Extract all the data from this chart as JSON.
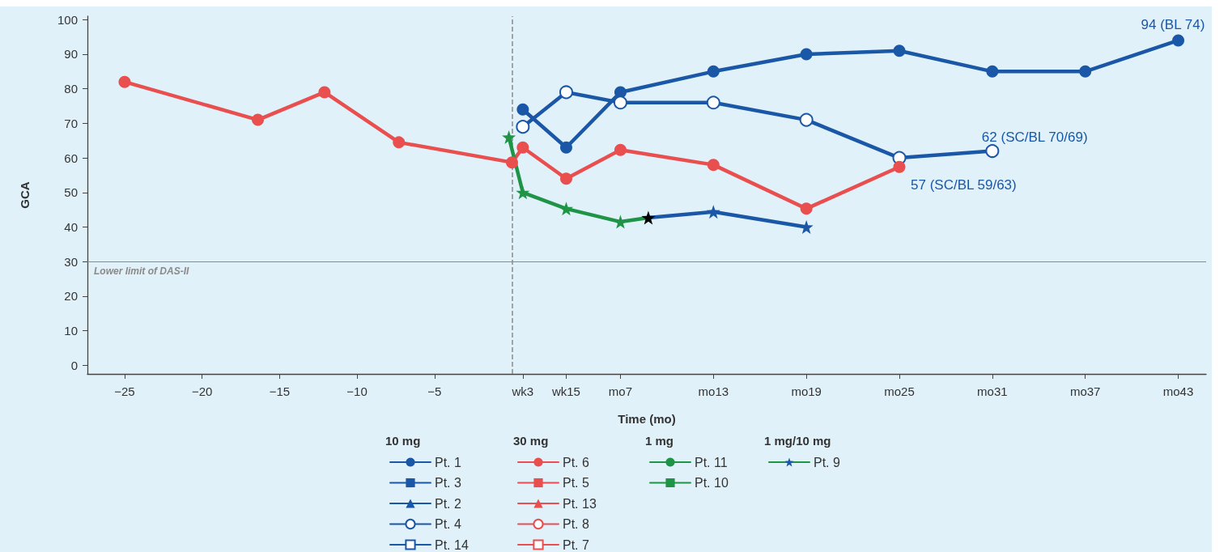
{
  "chart_data": {
    "type": "line",
    "xlabel": "Time (mo)",
    "ylabel": "GCA",
    "xlim": [
      -27.4,
      44.8
    ],
    "ylim": [
      -2.5,
      101
    ],
    "xticks": [
      -25,
      -20,
      -15,
      -10,
      -5,
      {
        "value": 0.7,
        "label": "wk3"
      },
      {
        "value": 3.5,
        "label": "wk15"
      },
      {
        "value": 7,
        "label": "mo7"
      },
      {
        "value": 13,
        "label": "mo13"
      },
      {
        "value": 19,
        "label": "mo19"
      },
      {
        "value": 25,
        "label": "mo25"
      },
      {
        "value": 31,
        "label": "mo31"
      },
      {
        "value": 37,
        "label": "mo37"
      },
      {
        "value": 43,
        "label": "mo43"
      }
    ],
    "yticks": [
      0,
      10,
      20,
      30,
      40,
      50,
      60,
      70,
      80,
      90,
      100
    ],
    "grid": false,
    "legend": "bottom",
    "legend_title": [
      "10 mg",
      "30 mg",
      "1 mg",
      "1 mg/10 mg"
    ],
    "series": [
      {
        "name": "Pt. 1",
        "color": "#1a57a6",
        "marker": "circle",
        "x": [
          0.7,
          3.5,
          7,
          13,
          19,
          25,
          31,
          37,
          43
        ],
        "values": [
          74,
          63,
          79,
          85,
          90,
          91,
          85,
          85,
          94
        ]
      },
      {
        "name": "Pt. 3",
        "color": "#1a57a6",
        "marker": "square"
      },
      {
        "name": "Pt. 2",
        "color": "#1a57a6",
        "marker": "triangle"
      },
      {
        "name": "Pt. 4",
        "color": "#1a57a6",
        "marker": "circle-open",
        "x": [
          0.7,
          3.5,
          7,
          13,
          19,
          25,
          31
        ],
        "values": [
          69,
          79,
          76,
          76,
          71,
          60,
          62
        ]
      },
      {
        "name": "Pt. 14",
        "color": "#1a57a6",
        "marker": "square-open"
      },
      {
        "name": "Pt. 6",
        "color": "#e84f4e",
        "marker": "circle",
        "x": [
          -25,
          -16.4,
          -12.1,
          -7.3,
          0,
          0.7,
          3.5,
          7,
          13,
          19,
          25
        ],
        "values": [
          82,
          71,
          79,
          64.5,
          58.7,
          63,
          54,
          62.3,
          58,
          45.3,
          57.4
        ]
      },
      {
        "name": "Pt. 5",
        "color": "#e84f4e",
        "marker": "square"
      },
      {
        "name": "Pt. 13",
        "color": "#e84f4e",
        "marker": "triangle"
      },
      {
        "name": "Pt. 8",
        "color": "#e84f4e",
        "marker": "circle-open"
      },
      {
        "name": "Pt. 7",
        "color": "#e84f4e",
        "marker": "square-open"
      },
      {
        "name": "Pt. 11",
        "color": "#1f9446",
        "marker": "circle"
      },
      {
        "name": "Pt. 10",
        "color": "#1f9446",
        "marker": "square"
      },
      {
        "name": "Pt. 9",
        "color": "#1f9446",
        "marker": "star",
        "x": [
          -0.2,
          0.7,
          3.5,
          7,
          8.8,
          13,
          19
        ],
        "values": [
          66,
          50,
          45.3,
          41.5,
          42.7,
          44.4,
          40
        ],
        "colors": [
          "#1f9446",
          "#1f9446",
          "#1f9446",
          "#1f9446",
          "#000000",
          "#1a57a6",
          "#1a57a6"
        ]
      }
    ],
    "ref_lines": [
      {
        "axis": "y",
        "value": 30,
        "label": "Lower limit of DAS-II",
        "color": "#8a8a8a",
        "line_style": "solid"
      },
      {
        "axis": "x",
        "value": 0,
        "color": "#8a8a8a",
        "line_style": "dashed"
      }
    ],
    "annotations": [
      {
        "text": "94 (BL 74)",
        "x": 43,
        "y": 94
      },
      {
        "text": "62 (SC/BL 70/69)",
        "x": 31,
        "y": 62
      },
      {
        "text": "57 (SC/BL 59/63)",
        "x": 25,
        "y": 57
      }
    ]
  }
}
